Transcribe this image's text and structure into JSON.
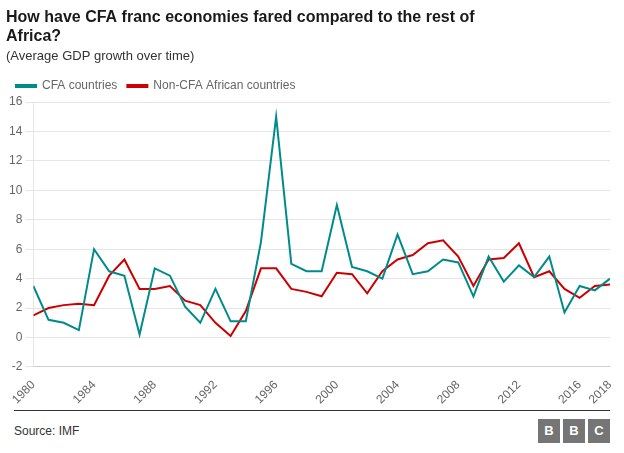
{
  "chart_data": {
    "type": "line",
    "title": [
      "How have CFA franc economies fared compared to the rest of",
      "Africa?"
    ],
    "subtitle": "(Average GDP growth over time)",
    "annotations": [
      "Source: IMF",
      "BBC"
    ],
    "x": [
      1980,
      1981,
      1982,
      1983,
      1984,
      1985,
      1986,
      1987,
      1988,
      1989,
      1990,
      1991,
      1992,
      1993,
      1994,
      1995,
      1996,
      1997,
      1998,
      1999,
      2000,
      2001,
      2002,
      2003,
      2004,
      2005,
      2006,
      2007,
      2008,
      2009,
      2010,
      2011,
      2012,
      2013,
      2014,
      2015,
      2016,
      2017,
      2018
    ],
    "series": [
      {
        "name": "CFA countries",
        "color": "#008B8B",
        "values": [
          3.5,
          1.2,
          1.0,
          0.5,
          6.0,
          4.5,
          4.2,
          0.2,
          4.7,
          4.2,
          2.1,
          1.0,
          3.3,
          1.1,
          1.1,
          6.5,
          15.0,
          5.0,
          4.5,
          4.5,
          9.0,
          4.8,
          4.5,
          4.0,
          7.0,
          4.3,
          4.5,
          5.3,
          5.1,
          2.8,
          5.5,
          3.8,
          4.9,
          4.1,
          5.5,
          1.7,
          3.5,
          3.2,
          4.0
        ]
      },
      {
        "name": "Non-CFA African countries",
        "color": "#cc0000",
        "values": [
          1.5,
          2.0,
          2.2,
          2.3,
          2.2,
          4.2,
          5.3,
          3.3,
          3.3,
          3.5,
          2.5,
          2.2,
          1.0,
          0.1,
          1.8,
          4.7,
          4.7,
          3.3,
          3.1,
          2.8,
          4.4,
          4.3,
          3.0,
          4.5,
          5.3,
          5.6,
          6.4,
          6.6,
          5.5,
          3.5,
          5.3,
          5.4,
          6.4,
          4.1,
          4.5,
          3.3,
          2.7,
          3.5,
          3.6
        ]
      }
    ],
    "xlim": [
      1980,
      2018
    ],
    "xticks": [
      1980,
      1984,
      1988,
      1992,
      1996,
      2000,
      2004,
      2008,
      2012,
      2016,
      2018
    ],
    "ylim": [
      -2,
      16
    ],
    "yticks": [
      -2,
      0,
      2,
      4,
      6,
      8,
      10,
      12,
      14,
      16
    ],
    "grid": "y",
    "legend": "top"
  }
}
